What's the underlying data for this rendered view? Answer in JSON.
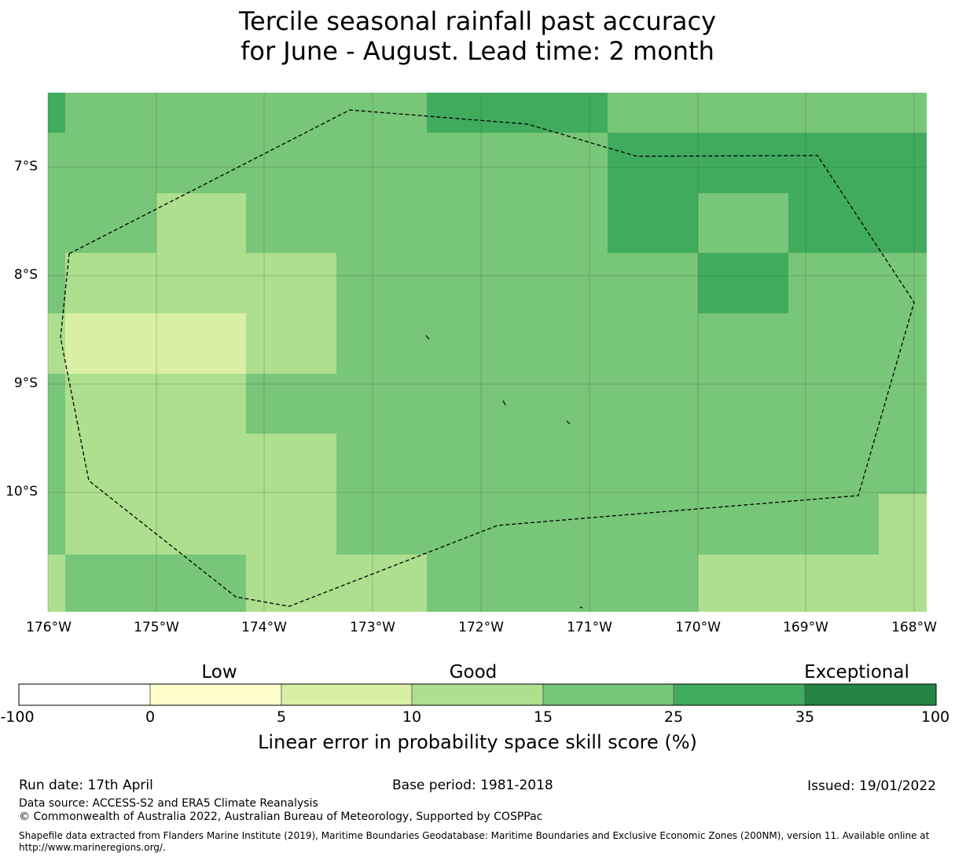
{
  "title_line1": "Tercile seasonal rainfall past accuracy",
  "title_line2": "for June - August. Lead time: 2 month",
  "map": {
    "lat_labels": [
      "7°S",
      "8°S",
      "9°S",
      "10°S"
    ],
    "lon_labels": [
      "176°W",
      "175°W",
      "174°W",
      "173°W",
      "172°W",
      "171°W",
      "170°W",
      "169°W",
      "168°W"
    ],
    "grid": {
      "lon_range": [
        -176.0,
        -167.9
      ],
      "lat_range": [
        -11.2,
        -6.4
      ],
      "note_rows_top_to_bottom": "skill category per 0.83 degree cell",
      "rows": [
        [
          25,
          15,
          15,
          15,
          15,
          25,
          25,
          15,
          15,
          15,
          15
        ],
        [
          15,
          15,
          15,
          15,
          15,
          15,
          15,
          25,
          25,
          25,
          25
        ],
        [
          15,
          15,
          10,
          15,
          15,
          15,
          15,
          25,
          15,
          25,
          25
        ],
        [
          15,
          10,
          10,
          10,
          15,
          15,
          15,
          15,
          25,
          15,
          15
        ],
        [
          10,
          5,
          5,
          10,
          15,
          15,
          15,
          15,
          15,
          15,
          15
        ],
        [
          15,
          10,
          10,
          15,
          15,
          15,
          15,
          15,
          15,
          15,
          15
        ],
        [
          15,
          10,
          10,
          10,
          15,
          15,
          15,
          15,
          15,
          15,
          15
        ],
        [
          15,
          10,
          10,
          10,
          15,
          15,
          15,
          15,
          15,
          15,
          10
        ],
        [
          10,
          15,
          15,
          10,
          10,
          15,
          15,
          15,
          10,
          10,
          10
        ]
      ]
    }
  },
  "colorbar": {
    "categories": [
      "Low",
      "Good",
      "Exceptional"
    ],
    "ticks": [
      "-100",
      "0",
      "5",
      "10",
      "15",
      "25",
      "35",
      "100"
    ],
    "colors": [
      "#ffffff",
      "#fffccc",
      "#d9efa3",
      "#addf8e",
      "#78c679",
      "#41ab5d",
      "#238443"
    ],
    "label": "Linear error in probability space skill score (%)"
  },
  "footer": {
    "run_date": "Run date: 17th April",
    "base_period": "Base period: 1981-2018",
    "issued": "Issued: 19/01/2022",
    "data_source": "Data source: ACCESS-S2 and ERA5 Climate Reanalysis",
    "copyright": "© Commonwealth of Australia 2022, Australian Bureau of Meteorology, Supported by COSPPac",
    "shapefile_line1": "Shapefile data extracted from Flanders Marine Institute (2019), Maritime Boundaries Geodatabase: Maritime Boundaries and Exclusive Economic Zones (200NM), version 11. Available online at",
    "shapefile_line2": "http://www.marineregions.org/."
  }
}
